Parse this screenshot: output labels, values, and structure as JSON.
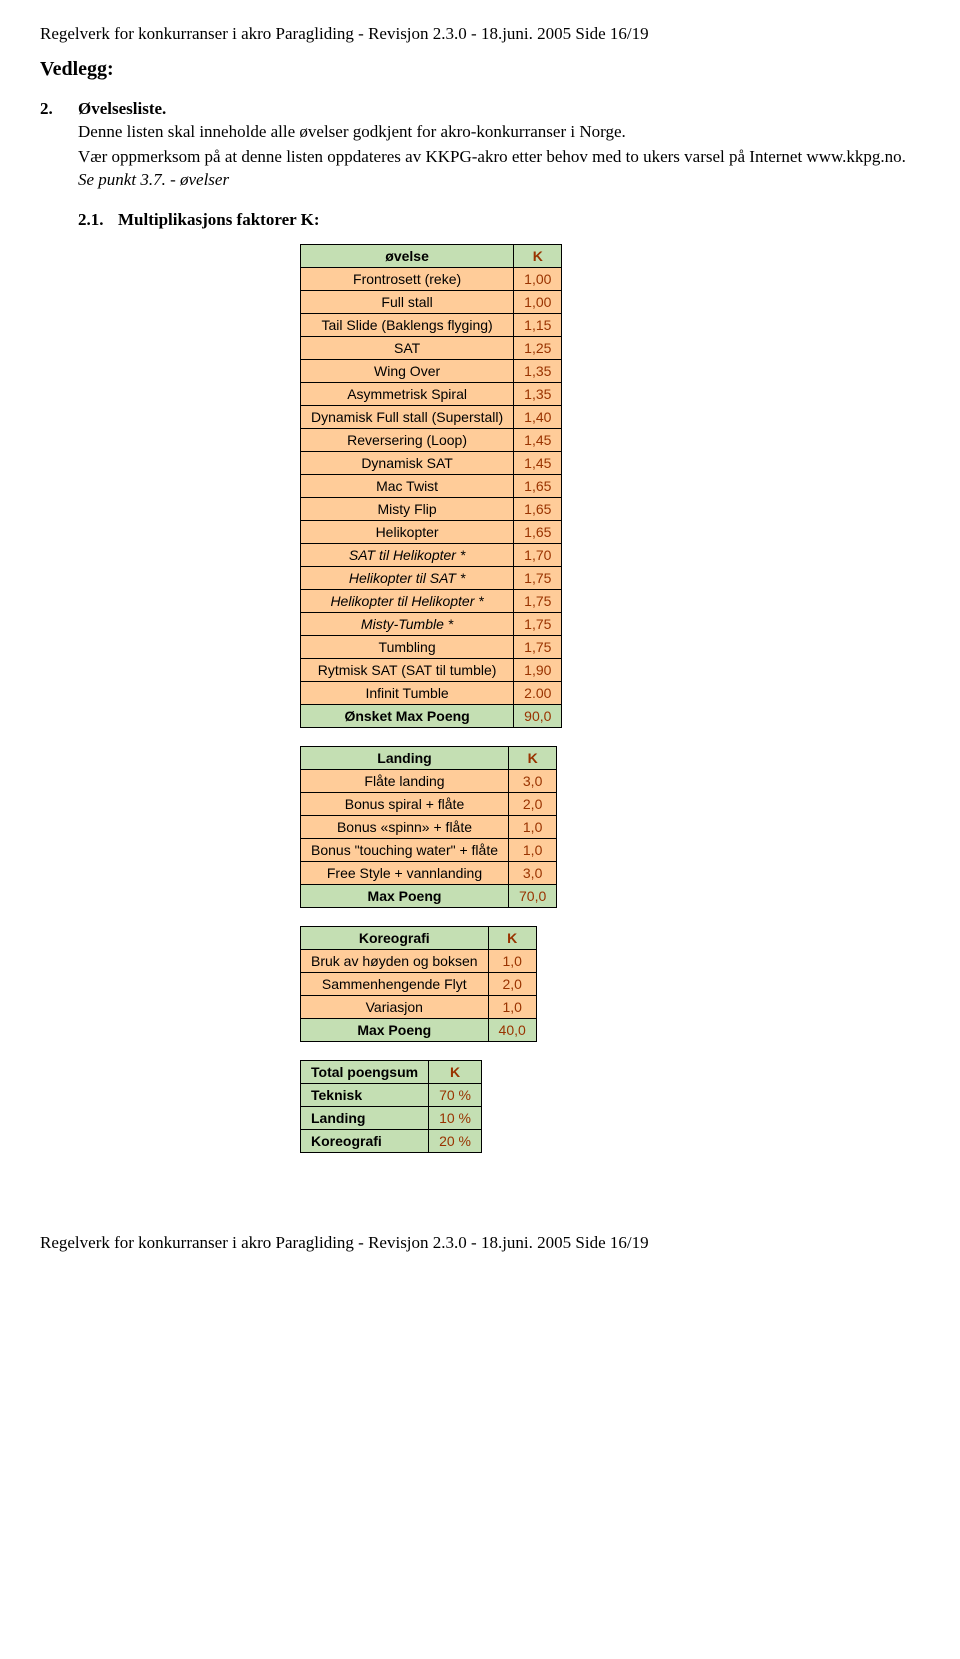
{
  "header": "Regelverk for konkurranser i akro Paragliding  -  Revisjon 2.3.0   -  18.juni. 2005  Side 16/19",
  "footer": "Regelverk for konkurranser i akro Paragliding  -  Revisjon 2.3.0   -  18.juni. 2005  Side 16/19",
  "vedlegg": "Vedlegg:",
  "section2": {
    "num": "2.",
    "title": "Øvelsesliste."
  },
  "para1": "Denne listen skal inneholde alle øvelser godkjent for akro-konkurranser i Norge.",
  "para2_a": "Vær oppmerksom på at denne listen oppdateres av KKPG-akro etter behov med to ukers varsel på Internet www.kkpg.no. ",
  "para2_b": "Se punkt 3.7. - øvelser",
  "section21": {
    "num": "2.1.",
    "title": "Multiplikasjons faktorer K:"
  },
  "colors": {
    "green": "#c4dfb3",
    "orange": "#ffcc99",
    "value_color": "#993300"
  },
  "table1": {
    "header": {
      "c1": "øvelse",
      "c2": "K"
    },
    "rows": [
      {
        "label": "Frontrosett (reke)",
        "val": "1,00",
        "italic": false
      },
      {
        "label": "Full stall",
        "val": "1,00",
        "italic": false
      },
      {
        "label": "Tail Slide (Baklengs flyging)",
        "val": "1,15",
        "italic": false
      },
      {
        "label": "SAT",
        "val": "1,25",
        "italic": false
      },
      {
        "label": "Wing Over",
        "val": "1,35",
        "italic": false
      },
      {
        "label": "Asymmetrisk Spiral",
        "val": "1,35",
        "italic": false
      },
      {
        "label": "Dynamisk Full stall (Superstall)",
        "val": "1,40",
        "italic": false
      },
      {
        "label": "Reversering (Loop)",
        "val": "1,45",
        "italic": false
      },
      {
        "label": "Dynamisk SAT",
        "val": "1,45",
        "italic": false
      },
      {
        "label": "Mac Twist",
        "val": "1,65",
        "italic": false
      },
      {
        "label": "Misty Flip",
        "val": "1,65",
        "italic": false
      },
      {
        "label": "Helikopter",
        "val": "1,65",
        "italic": false
      },
      {
        "label": "SAT til Helikopter *",
        "val": "1,70",
        "italic": true
      },
      {
        "label": "Helikopter til SAT *",
        "val": "1,75",
        "italic": true
      },
      {
        "label": "Helikopter til Helikopter *",
        "val": "1,75",
        "italic": true
      },
      {
        "label": "Misty-Tumble *",
        "val": "1,75",
        "italic": true
      },
      {
        "label": "Tumbling",
        "val": "1,75",
        "italic": false
      },
      {
        "label": "Rytmisk SAT (SAT til tumble)",
        "val": "1,90",
        "italic": false
      },
      {
        "label": "Infinit Tumble",
        "val": "2.00",
        "italic": false
      }
    ],
    "footer": {
      "label": "Ønsket Max Poeng",
      "val": "90,0"
    }
  },
  "table2": {
    "header": {
      "c1": "Landing",
      "c2": "K"
    },
    "rows": [
      {
        "label": "Flåte landing",
        "val": "3,0"
      },
      {
        "label": "Bonus spiral + flåte",
        "val": "2,0"
      },
      {
        "label": "Bonus «spinn» + flåte",
        "val": "1,0"
      },
      {
        "label": "Bonus \"touching water\" + flåte",
        "val": "1,0"
      },
      {
        "label": "Free Style + vannlanding",
        "val": "3,0"
      }
    ],
    "footer": {
      "label": "Max Poeng",
      "val": "70,0"
    }
  },
  "table3": {
    "header": {
      "c1": "Koreografi",
      "c2": "K"
    },
    "rows": [
      {
        "label": "Bruk av høyden og boksen",
        "val": "1,0"
      },
      {
        "label": "Sammenhengende Flyt",
        "val": "2,0"
      },
      {
        "label": "Variasjon",
        "val": "1,0"
      }
    ],
    "footer": {
      "label": "Max Poeng",
      "val": "40,0"
    }
  },
  "table4": {
    "header": {
      "c1": "Total poengsum",
      "c2": "K"
    },
    "rows": [
      {
        "label": "Teknisk",
        "val": "70 %"
      },
      {
        "label": "Landing",
        "val": "10 %"
      },
      {
        "label": "Koreografi",
        "val": "20 %"
      }
    ]
  }
}
